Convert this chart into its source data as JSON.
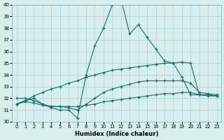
{
  "background_color": "#d6eeee",
  "grid_color": "#b0d0d0",
  "line_color": "#1a6e6a",
  "xlabel": "Humidex (Indice chaleur)",
  "xlim": [
    -0.5,
    23.5
  ],
  "ylim": [
    30,
    40
  ],
  "yticks": [
    30,
    31,
    32,
    33,
    34,
    35,
    36,
    37,
    38,
    39,
    40
  ],
  "xticks": [
    0,
    1,
    2,
    3,
    4,
    5,
    6,
    7,
    8,
    9,
    10,
    11,
    12,
    13,
    14,
    15,
    16,
    17,
    18,
    19,
    20,
    21,
    22,
    23
  ],
  "series": [
    {
      "x": [
        0,
        1,
        2,
        3,
        4,
        5,
        6,
        7,
        8,
        9,
        10,
        11,
        12,
        13,
        14,
        15,
        16,
        17,
        18,
        19,
        20,
        21,
        22,
        23
      ],
      "y": [
        31.5,
        31.7,
        31.6,
        31.4,
        31.3,
        31.3,
        31.3,
        31.3,
        31.4,
        31.5,
        31.7,
        31.8,
        31.9,
        32.0,
        32.1,
        32.2,
        32.3,
        32.4,
        32.4,
        32.5,
        32.5,
        32.3,
        32.2,
        32.2
      ]
    },
    {
      "x": [
        0,
        1,
        2,
        3,
        4,
        5,
        6,
        7,
        8,
        9,
        10,
        11,
        12,
        13,
        14,
        15,
        16,
        17,
        18,
        19,
        20,
        21,
        22,
        23
      ],
      "y": [
        32.0,
        32.0,
        31.8,
        31.5,
        31.3,
        31.3,
        31.2,
        31.0,
        31.5,
        32.0,
        32.5,
        32.8,
        33.0,
        33.2,
        33.4,
        33.5,
        33.5,
        33.5,
        33.5,
        33.5,
        33.3,
        32.5,
        32.4,
        32.3
      ]
    },
    {
      "x": [
        0,
        1,
        2,
        3,
        4,
        5,
        6,
        7,
        8,
        9,
        10,
        11,
        12,
        13,
        14,
        15,
        16,
        17,
        18,
        19,
        20,
        21,
        22,
        23
      ],
      "y": [
        31.5,
        31.8,
        32.0,
        31.5,
        31.2,
        31.0,
        31.0,
        30.3,
        34.0,
        36.5,
        38.0,
        40.0,
        40.5,
        37.5,
        38.3,
        37.2,
        36.2,
        35.2,
        35.0,
        33.8,
        32.3,
        32.3,
        32.3,
        32.2
      ]
    },
    {
      "x": [
        0,
        1,
        2,
        3,
        4,
        5,
        6,
        7,
        8,
        9,
        10,
        11,
        12,
        13,
        14,
        15,
        16,
        17,
        18,
        19,
        20,
        21,
        22,
        23
      ],
      "y": [
        31.5,
        31.8,
        32.2,
        32.5,
        32.8,
        33.0,
        33.3,
        33.5,
        33.8,
        34.0,
        34.2,
        34.4,
        34.5,
        34.6,
        34.7,
        34.8,
        34.9,
        35.0,
        35.0,
        35.1,
        35.0,
        32.3,
        32.3,
        32.2
      ]
    }
  ]
}
